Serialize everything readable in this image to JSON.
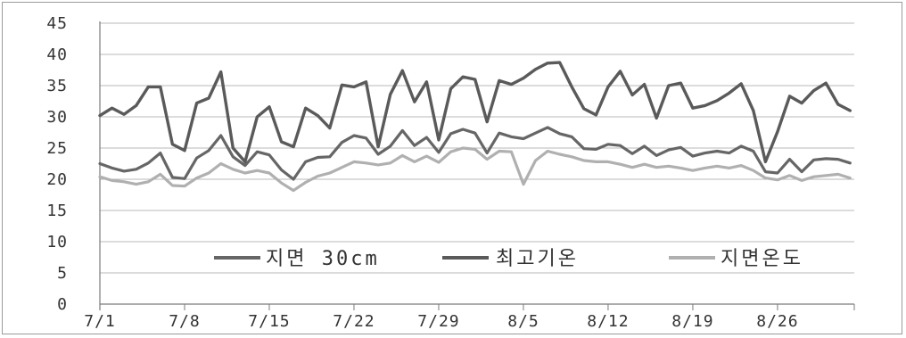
{
  "chart_data": {
    "type": "line",
    "title": "",
    "xlabel": "",
    "ylabel": "",
    "ylim": [
      0,
      45
    ],
    "yticks": [
      0,
      5,
      10,
      15,
      20,
      25,
      30,
      35,
      40,
      45
    ],
    "xtick_labels": [
      "7/1",
      "7/8",
      "7/15",
      "7/22",
      "7/29",
      "8/5",
      "8/12",
      "8/19",
      "8/26"
    ],
    "grid": "horizontal",
    "legend_placement": "bottom",
    "series": [
      {
        "name": "지면 30cm",
        "color": "#666666",
        "values": [
          22.5,
          21.8,
          21.3,
          21.6,
          22.6,
          24.2,
          20.3,
          20.1,
          23.4,
          24.6,
          27.0,
          23.6,
          22.2,
          24.4,
          23.9,
          21.5,
          20.0,
          22.8,
          23.5,
          23.6,
          25.9,
          27.0,
          26.6,
          24.0,
          25.3,
          27.8,
          25.4,
          26.7,
          24.3,
          27.3,
          28.0,
          27.4,
          24.2,
          27.4,
          26.8,
          26.5,
          27.4,
          28.3,
          27.3,
          26.8,
          24.9,
          24.8,
          25.6,
          25.4,
          24.1,
          25.3,
          23.8,
          24.7,
          25.1,
          23.7,
          24.2,
          24.5,
          24.2,
          25.3,
          24.5,
          21.2,
          21.0,
          23.2,
          21.2,
          23.1,
          23.3,
          23.2,
          22.6
        ]
      },
      {
        "name": "최고기온",
        "color": "#5a5a5a",
        "values": [
          30.2,
          31.4,
          30.4,
          31.8,
          34.8,
          34.8,
          25.6,
          24.6,
          32.2,
          33.0,
          37.2,
          25.0,
          22.8,
          30.0,
          31.6,
          26.0,
          25.2,
          31.4,
          30.2,
          28.2,
          35.1,
          34.8,
          35.6,
          25.2,
          33.6,
          37.4,
          32.4,
          35.6,
          26.3,
          34.5,
          36.4,
          36.0,
          29.2,
          35.8,
          35.2,
          36.2,
          37.6,
          38.6,
          38.7,
          34.8,
          31.3,
          30.3,
          34.8,
          37.3,
          33.5,
          35.2,
          29.8,
          35.0,
          35.4,
          31.4,
          31.8,
          32.6,
          33.8,
          35.3,
          31.0,
          22.8,
          27.6,
          33.3,
          32.2,
          34.2,
          35.4,
          32.0,
          31.0
        ]
      },
      {
        "name": "지면온도",
        "color": "#b0b0b0",
        "values": [
          20.4,
          19.8,
          19.6,
          19.2,
          19.6,
          20.8,
          19.0,
          18.9,
          20.2,
          21.0,
          22.5,
          21.6,
          21.0,
          21.4,
          21.0,
          19.4,
          18.2,
          19.5,
          20.5,
          21.0,
          21.9,
          22.8,
          22.6,
          22.3,
          22.6,
          23.8,
          22.8,
          23.7,
          22.7,
          24.4,
          25.0,
          24.8,
          23.2,
          24.5,
          24.4,
          19.2,
          23.0,
          24.5,
          24.0,
          23.6,
          23.0,
          22.8,
          22.8,
          22.4,
          21.9,
          22.4,
          21.9,
          22.1,
          21.8,
          21.4,
          21.8,
          22.1,
          21.8,
          22.2,
          21.4,
          20.2,
          19.9,
          20.6,
          19.8,
          20.4,
          20.6,
          20.8,
          20.2
        ]
      }
    ]
  }
}
